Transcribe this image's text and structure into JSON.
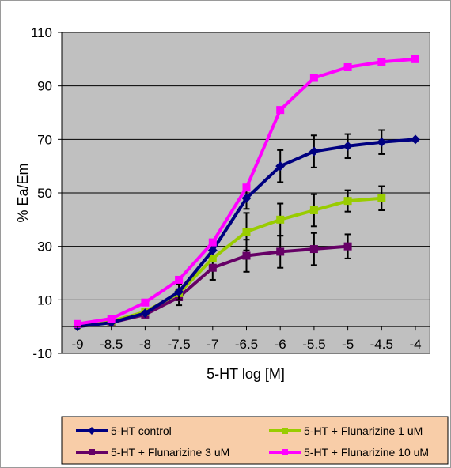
{
  "chart_data": {
    "type": "line",
    "title": "",
    "xlabel": "5-HT log [M]",
    "ylabel": "% Ea/Em",
    "x": [
      -9,
      -8.5,
      -8,
      -7.5,
      -7,
      -6.5,
      -6,
      -5.5,
      -5,
      -4.5,
      -4
    ],
    "xticks": [
      "-9",
      "-8.5",
      "-8",
      "-7.5",
      "-7",
      "-6.5",
      "-6",
      "-5.5",
      "-5",
      "-4.5",
      "-4"
    ],
    "ylim": [
      -10,
      110
    ],
    "yticks": [
      -10,
      10,
      30,
      50,
      70,
      90,
      110
    ],
    "grid": "horizontal",
    "plot_background": "#c0c0c0",
    "legend_position": "bottom",
    "legend_background": "#f8cda8",
    "series": [
      {
        "name": "5-HT control",
        "color": "#000080",
        "marker": "diamond",
        "values": [
          0,
          1.5,
          5,
          13,
          28.5,
          48,
          60,
          65.5,
          67.5,
          69,
          70
        ],
        "errors": [
          0,
          0,
          0,
          3,
          0,
          4,
          6,
          6,
          4.5,
          4.5,
          0
        ]
      },
      {
        "name": "5-HT + Flunarizine 1 uM",
        "color": "#99cc00",
        "marker": "square",
        "values": [
          0.5,
          2,
          5.5,
          12.5,
          25.5,
          35.5,
          40,
          43.5,
          47,
          48,
          null
        ],
        "errors": [
          0,
          0,
          0,
          0,
          0,
          7,
          6,
          6,
          4,
          4.5,
          0
        ]
      },
      {
        "name": "5-HT + Flunarizine 3 uM",
        "color": "#660066",
        "marker": "square",
        "values": [
          0.5,
          1.5,
          4.5,
          11,
          22,
          26.5,
          28,
          29,
          30,
          null,
          null
        ],
        "errors": [
          0,
          0,
          0,
          3,
          4.5,
          6,
          6,
          6,
          4.5,
          0,
          0
        ]
      },
      {
        "name": "5-HT + Flunarizine 10 uM",
        "color": "#ff00ff",
        "marker": "square",
        "values": [
          1,
          3,
          9,
          17.5,
          31.5,
          52,
          81,
          93,
          97,
          99,
          100
        ],
        "errors": [
          0,
          0,
          0,
          0,
          0,
          0,
          0,
          0,
          0,
          0,
          0
        ]
      }
    ]
  }
}
